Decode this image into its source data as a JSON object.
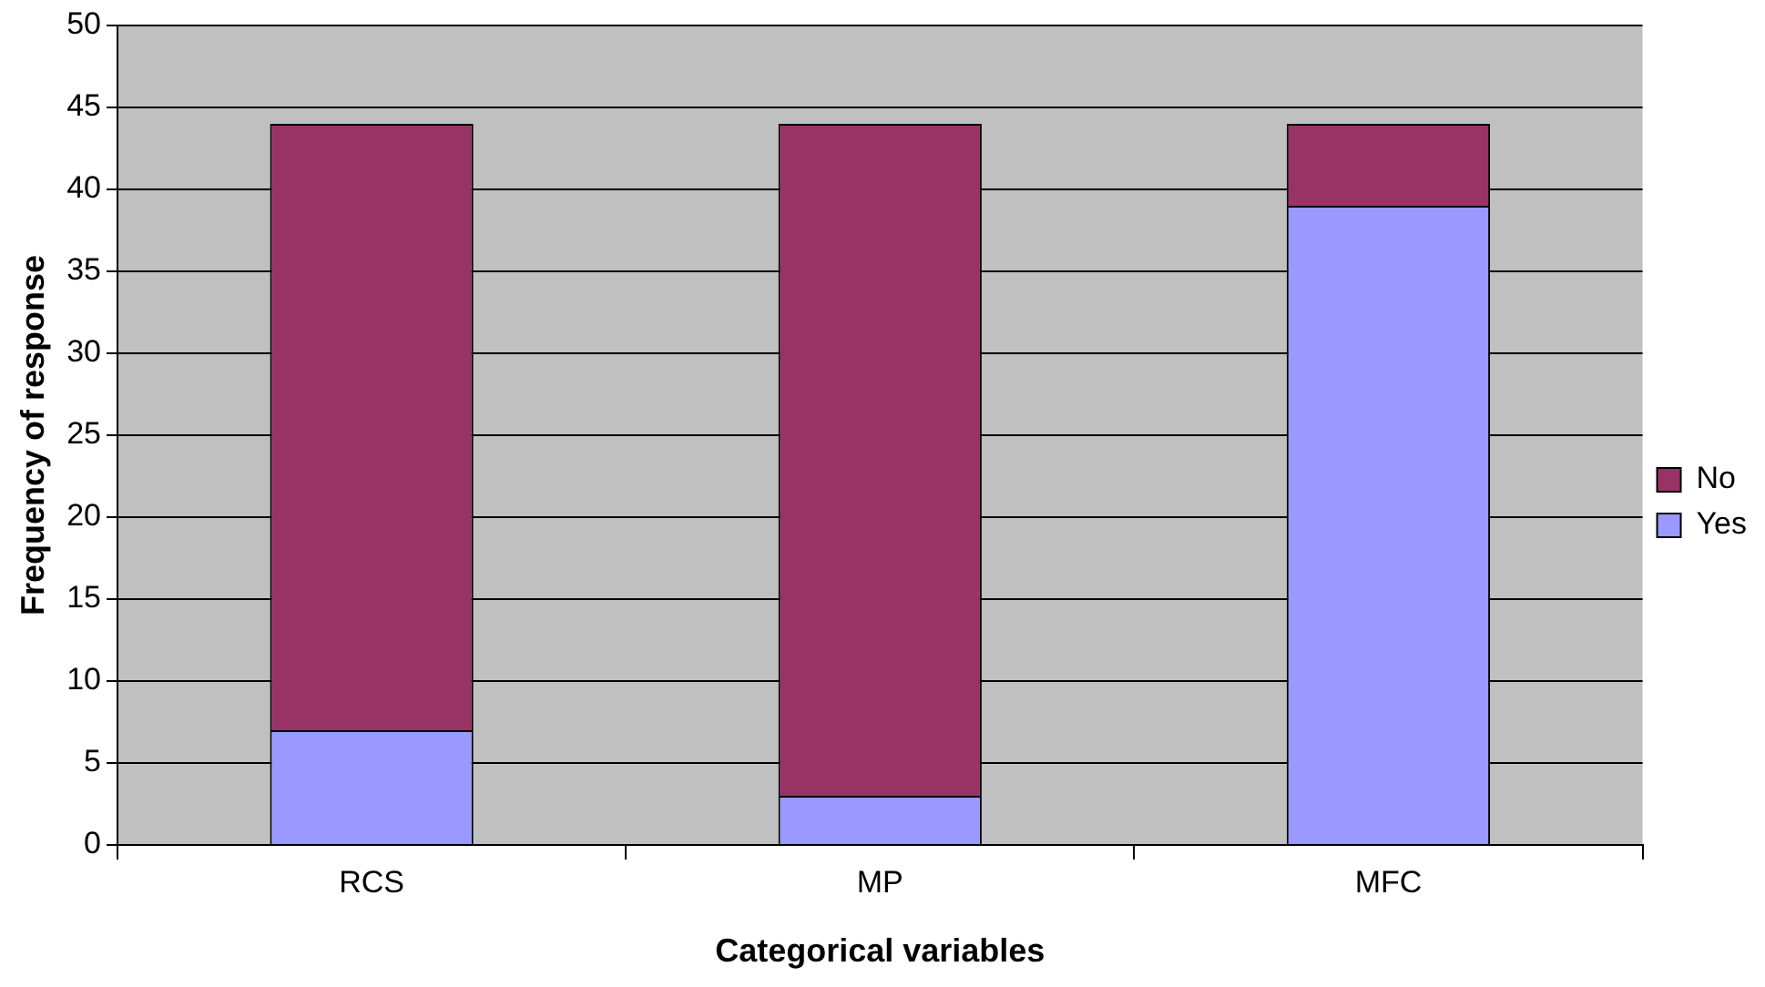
{
  "chart_data": {
    "type": "bar",
    "stacked": true,
    "xlabel": "Categorical variables",
    "ylabel": "Frequency of response",
    "categories": [
      "RCS",
      "MP",
      "MFC"
    ],
    "series": [
      {
        "name": "Yes",
        "color": "#9999ff",
        "values": [
          7,
          3,
          39
        ]
      },
      {
        "name": "No",
        "color": "#993366",
        "values": [
          37,
          41,
          5
        ]
      }
    ],
    "ylim": [
      0,
      50
    ],
    "yticks": [
      0,
      5,
      10,
      15,
      20,
      25,
      30,
      35,
      40,
      45,
      50
    ],
    "grid": "y",
    "legend": "right"
  }
}
